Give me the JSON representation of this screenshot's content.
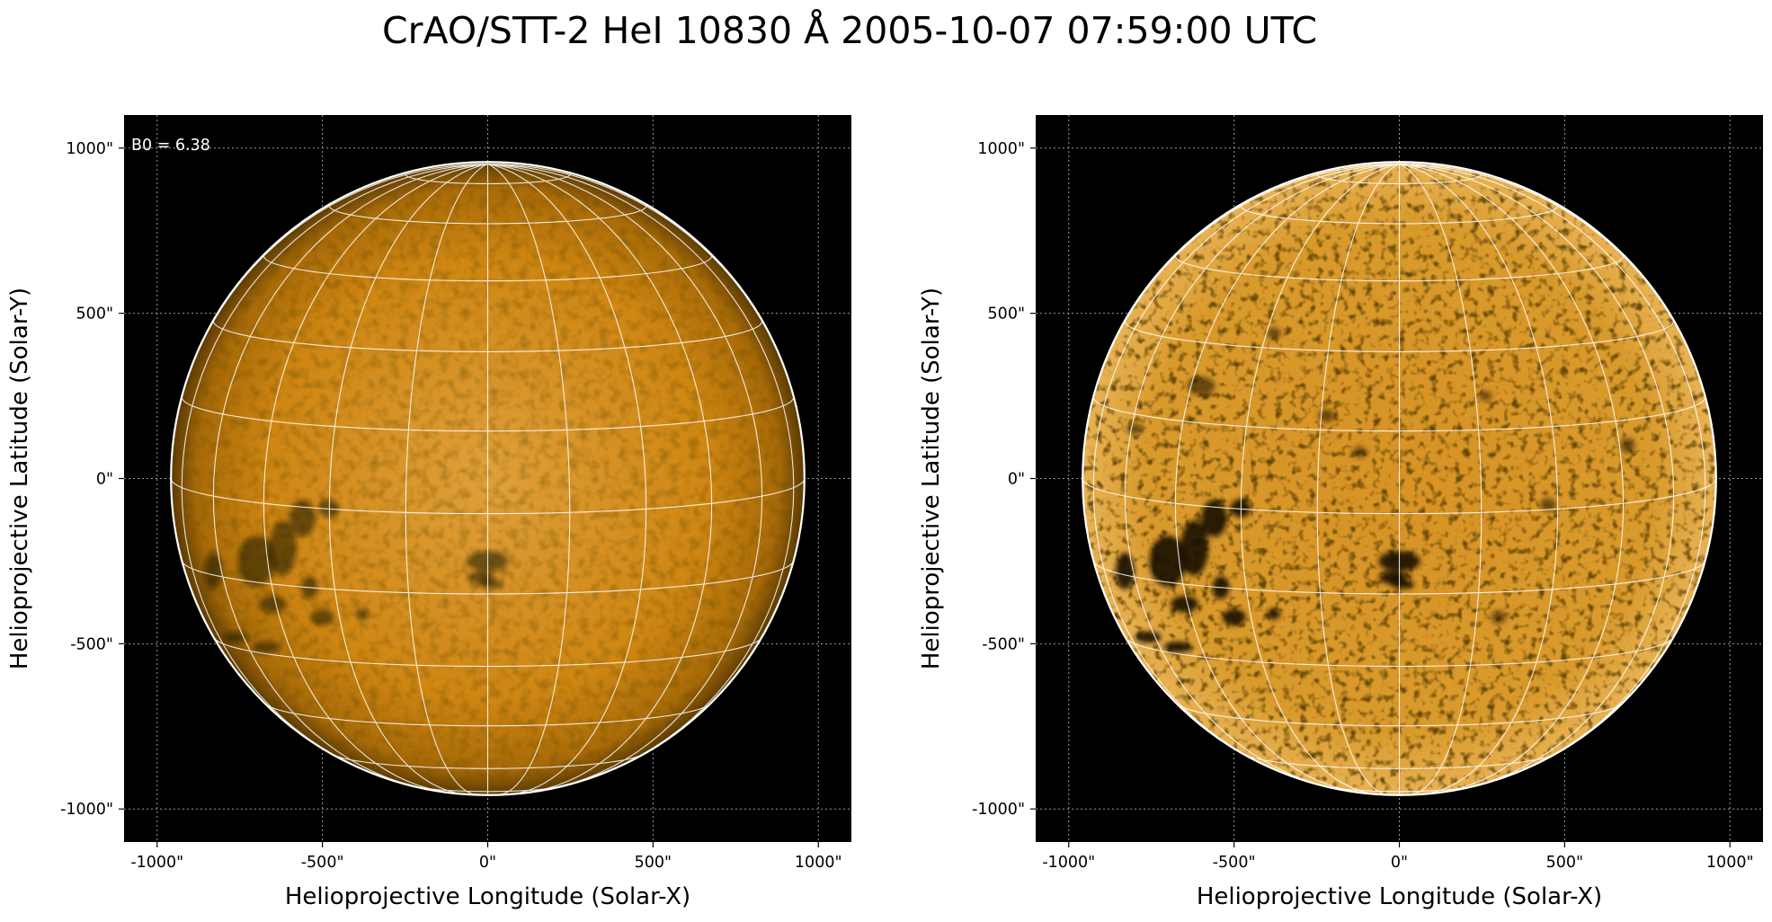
{
  "title": "CrAO/STT-2 HeI 10830 Å 2005-10-07 07:59:00 UTC",
  "colors": {
    "background": "#000000",
    "disk_bright": "#e8a63e",
    "disk_mid": "#c77a08",
    "disk_dark": "#2a1800",
    "grid": "#ffffff",
    "axis_grid": "#9a9a9a"
  },
  "panels": [
    {
      "id": "left",
      "annotation": "B0 = 6.38",
      "xlabel": "Helioprojective Longitude (Solar-X)",
      "ylabel": "Helioprojective Latitude (Solar-Y)",
      "x_ticks": [
        "-1000\"",
        "-500\"",
        "0\"",
        "500\"",
        "1000\""
      ],
      "y_ticks": [
        "1000\"",
        "500\"",
        "0\"",
        "-500\"",
        "-1000\""
      ],
      "contrast": "normal"
    },
    {
      "id": "right",
      "annotation": "",
      "xlabel": "Helioprojective Longitude (Solar-X)",
      "ylabel": "Helioprojective Latitude (Solar-Y)",
      "x_ticks": [
        "-1000\"",
        "-500\"",
        "0\"",
        "500\"",
        "1000\""
      ],
      "y_ticks": [
        "1000\"",
        "500\"",
        "0\"",
        "-500\"",
        "-1000\""
      ],
      "contrast": "enhanced"
    }
  ]
}
